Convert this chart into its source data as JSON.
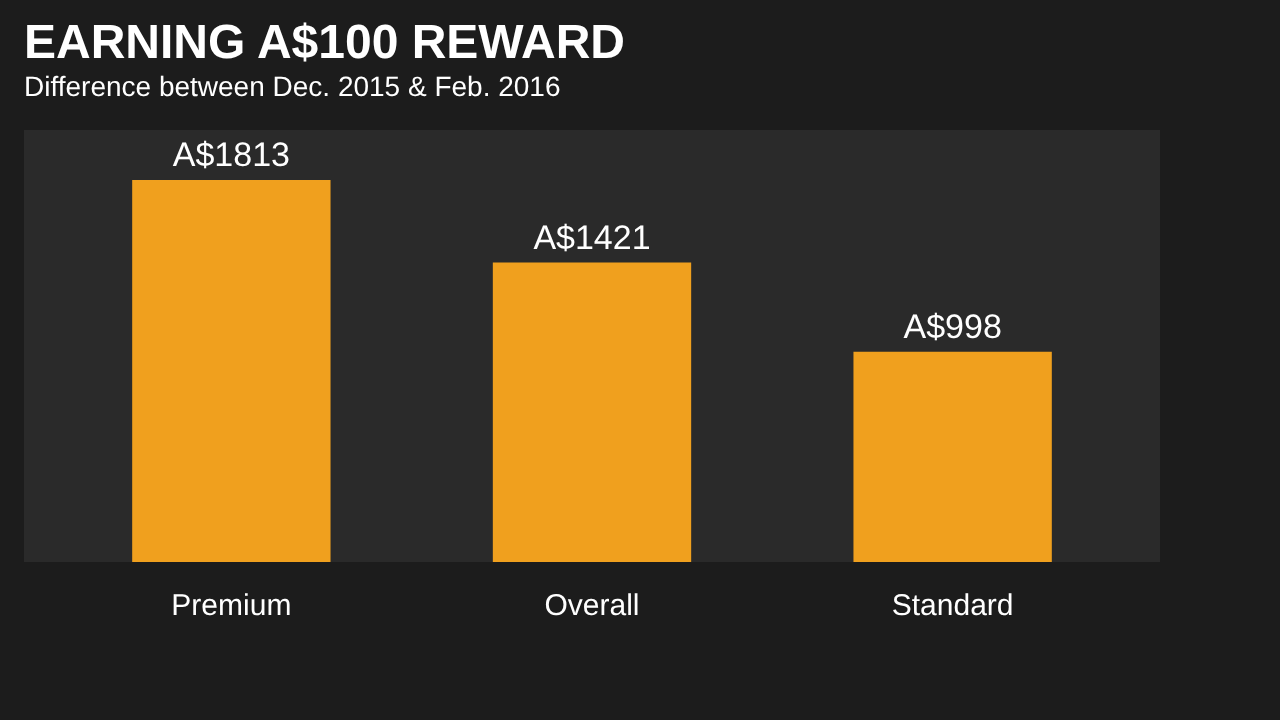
{
  "chart_data": {
    "type": "bar",
    "title": "EARNING A$100 REWARD",
    "subtitle": "Difference between Dec. 2015 & Feb. 2016",
    "categories": [
      "Premium",
      "Overall",
      "Standard"
    ],
    "values": [
      1813,
      1421,
      998
    ],
    "value_labels": [
      "A$1813",
      "A$1421",
      "A$998"
    ],
    "color": "#f0a01e",
    "ylim": [
      0,
      2050
    ],
    "tick_labels": "x"
  }
}
